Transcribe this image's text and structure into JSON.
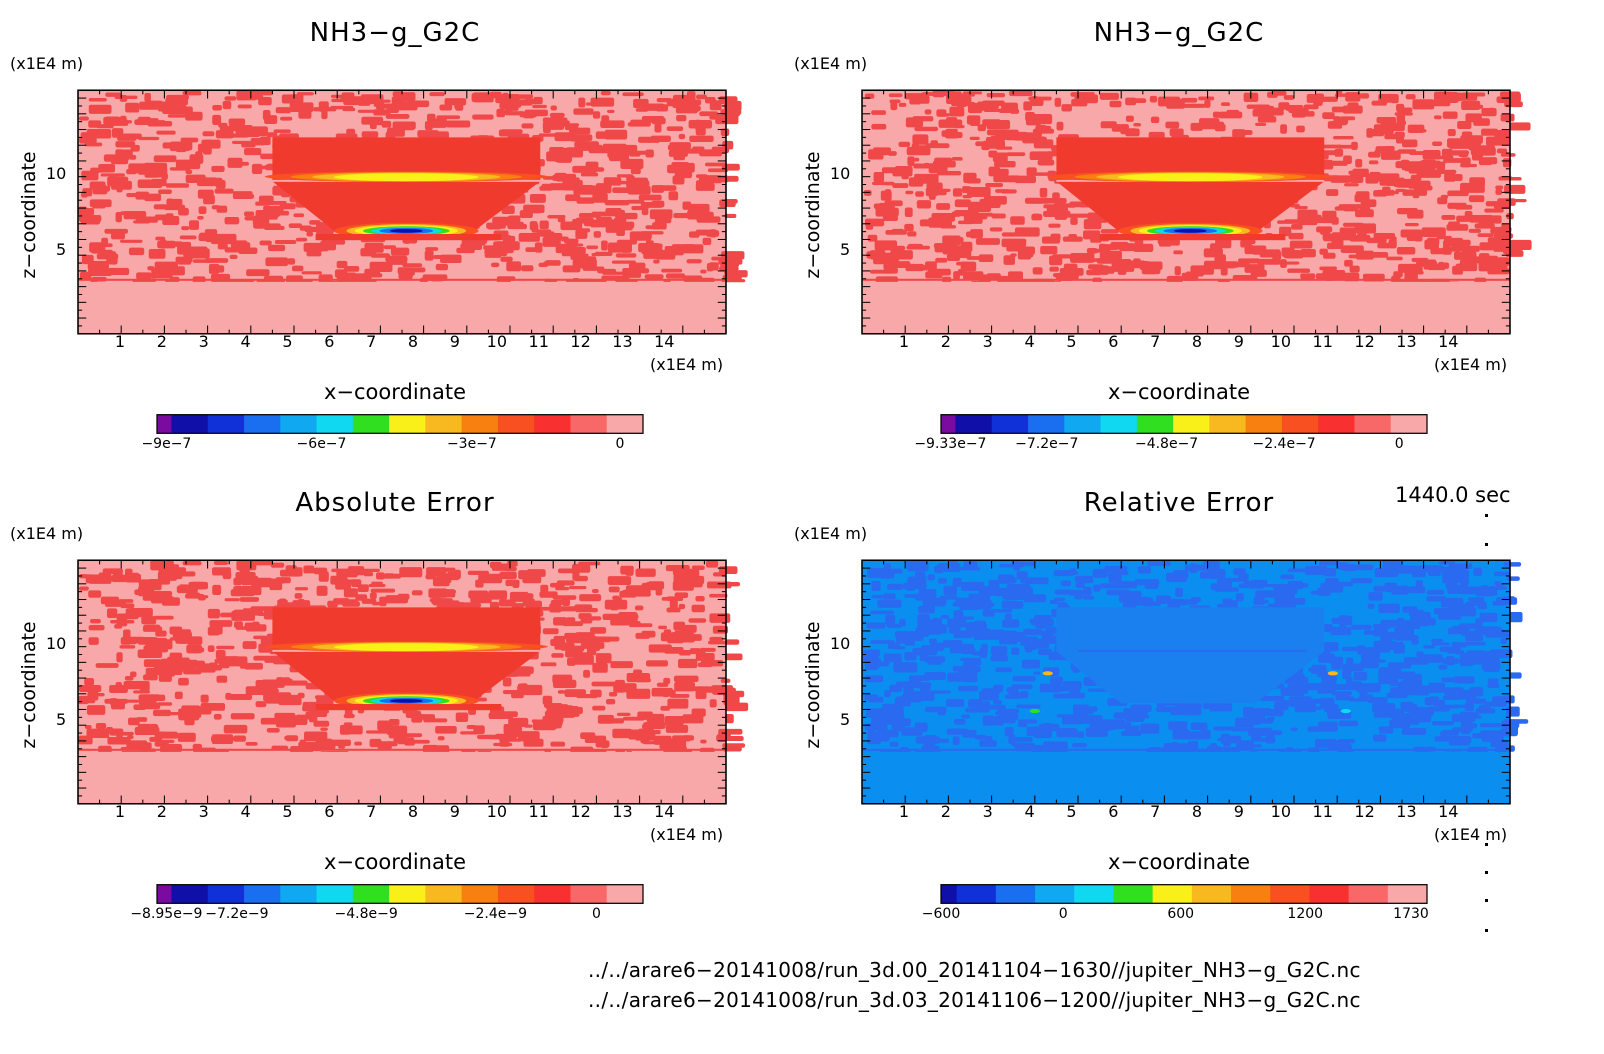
{
  "colors": {
    "field_base": "#f8a8a8",
    "field_noise": "#f04848",
    "blob": "#f03a2e",
    "rel_base": "#0a8ef0",
    "rel_noise": "#2a6af0",
    "rel_blob": "#1a80f0"
  },
  "panels": [
    {
      "title": "NH3−g_G2C",
      "yunit": "(x1E4 m)",
      "xunit": "(x1E4 m)",
      "xlabel": "x−coordinate",
      "ylabel": "z−coordinate",
      "xticks": [
        "1",
        "2",
        "3",
        "4",
        "5",
        "6",
        "7",
        "8",
        "9",
        "10",
        "11",
        "12",
        "13",
        "14"
      ],
      "yticks": [
        "5",
        "10"
      ],
      "colorbar": {
        "colors": [
          "#7a0aa0",
          "#1010a8",
          "#1030d8",
          "#1a6ef0",
          "#10a8f0",
          "#10d8f0",
          "#30e020",
          "#f8f018",
          "#f8b820",
          "#f88010",
          "#f85020",
          "#f83030",
          "#f86868",
          "#f8a8a8"
        ],
        "labels": [
          "−9e−7",
          "−6e−7",
          "−3e−7",
          "0"
        ],
        "label_fracs": [
          0.02,
          0.35,
          0.67,
          0.985
        ]
      },
      "mode": "field"
    },
    {
      "title": "NH3−g_G2C",
      "yunit": "(x1E4 m)",
      "xunit": "(x1E4 m)",
      "xlabel": "x−coordinate",
      "ylabel": "z−coordinate",
      "xticks": [
        "1",
        "2",
        "3",
        "4",
        "5",
        "6",
        "7",
        "8",
        "9",
        "10",
        "11",
        "12",
        "13",
        "14"
      ],
      "yticks": [
        "5",
        "10"
      ],
      "colorbar": {
        "colors": [
          "#7a0aa0",
          "#1010a8",
          "#1030d8",
          "#1a6ef0",
          "#10a8f0",
          "#10d8f0",
          "#30e020",
          "#f8f018",
          "#f8b820",
          "#f88010",
          "#f85020",
          "#f83030",
          "#f86868",
          "#f8a8a8"
        ],
        "labels": [
          "−9.33e−7",
          "−7.2e−7",
          "−4.8e−7",
          "−2.4e−7",
          "0"
        ],
        "label_fracs": [
          0.02,
          0.225,
          0.48,
          0.73,
          0.975
        ]
      },
      "mode": "field"
    },
    {
      "title": "Absolute Error",
      "yunit": "(x1E4 m)",
      "xunit": "(x1E4 m)",
      "xlabel": "x−coordinate",
      "ylabel": "z−coordinate",
      "xticks": [
        "1",
        "2",
        "3",
        "4",
        "5",
        "6",
        "7",
        "8",
        "9",
        "10",
        "11",
        "12",
        "13",
        "14"
      ],
      "yticks": [
        "5",
        "10"
      ],
      "colorbar": {
        "colors": [
          "#7a0aa0",
          "#1010a8",
          "#1030d8",
          "#1a6ef0",
          "#10a8f0",
          "#10d8f0",
          "#30e020",
          "#f8f018",
          "#f8b820",
          "#f88010",
          "#f85020",
          "#f83030",
          "#f86868",
          "#f8a8a8"
        ],
        "labels": [
          "−8.95e−9",
          "−7.2e−9",
          "−4.8e−9",
          "−2.4e−9",
          "0"
        ],
        "label_fracs": [
          0.02,
          0.17,
          0.445,
          0.72,
          0.935
        ]
      },
      "mode": "field"
    },
    {
      "title": "Relative Error",
      "yunit": "(x1E4 m)",
      "xunit": "(x1E4 m)",
      "xlabel": "x−coordinate",
      "ylabel": "z−coordinate",
      "xticks": [
        "1",
        "2",
        "3",
        "4",
        "5",
        "6",
        "7",
        "8",
        "9",
        "10",
        "11",
        "12",
        "13",
        "14"
      ],
      "yticks": [
        "5",
        "10"
      ],
      "colorbar": {
        "colors": [
          "#1010a8",
          "#1030d8",
          "#1a6ef0",
          "#10a8f0",
          "#10d8f0",
          "#30e020",
          "#f8f018",
          "#f8b820",
          "#f88010",
          "#f85020",
          "#f83030",
          "#f86868",
          "#f8a8a8"
        ],
        "labels": [
          "−600",
          "0",
          "600",
          "1200",
          "1730"
        ],
        "label_fracs": [
          0.0,
          0.26,
          0.51,
          0.775,
          1.0
        ]
      },
      "mode": "rel"
    }
  ],
  "time_label": "1440.0 sec",
  "file_paths": [
    "../../arare6−20141008/run_3d.00_20141104−1630//jupiter_NH3−g_G2C.nc",
    "../../arare6−20141008/run_3d.03_20141106−1200//jupiter_NH3−g_G2C.nc"
  ],
  "chart_data": [
    {
      "type": "heatmap",
      "title": "NH3−g_G2C",
      "xlabel": "x−coordinate",
      "ylabel": "z−coordinate",
      "xunit": "(x1E4 m)",
      "yunit": "(x1E4 m)",
      "xlim": [
        0,
        15
      ],
      "ylim": [
        0,
        15
      ],
      "colorbar_range": [
        -9e-07,
        0
      ]
    },
    {
      "type": "heatmap",
      "title": "NH3−g_G2C",
      "xlabel": "x−coordinate",
      "ylabel": "z−coordinate",
      "xunit": "(x1E4 m)",
      "yunit": "(x1E4 m)",
      "xlim": [
        0,
        15
      ],
      "ylim": [
        0,
        15
      ],
      "colorbar_range": [
        -9.33e-07,
        0
      ]
    },
    {
      "type": "heatmap",
      "title": "Absolute Error",
      "xlabel": "x−coordinate",
      "ylabel": "z−coordinate",
      "xunit": "(x1E4 m)",
      "yunit": "(x1E4 m)",
      "xlim": [
        0,
        15
      ],
      "ylim": [
        0,
        15
      ],
      "colorbar_range": [
        -8.95e-09,
        0
      ]
    },
    {
      "type": "heatmap",
      "title": "Relative Error",
      "xlabel": "x−coordinate",
      "ylabel": "z−coordinate",
      "xunit": "(x1E4 m)",
      "yunit": "(x1E4 m)",
      "xlim": [
        0,
        15
      ],
      "ylim": [
        0,
        15
      ],
      "colorbar_range": [
        -600,
        1730
      ]
    }
  ]
}
